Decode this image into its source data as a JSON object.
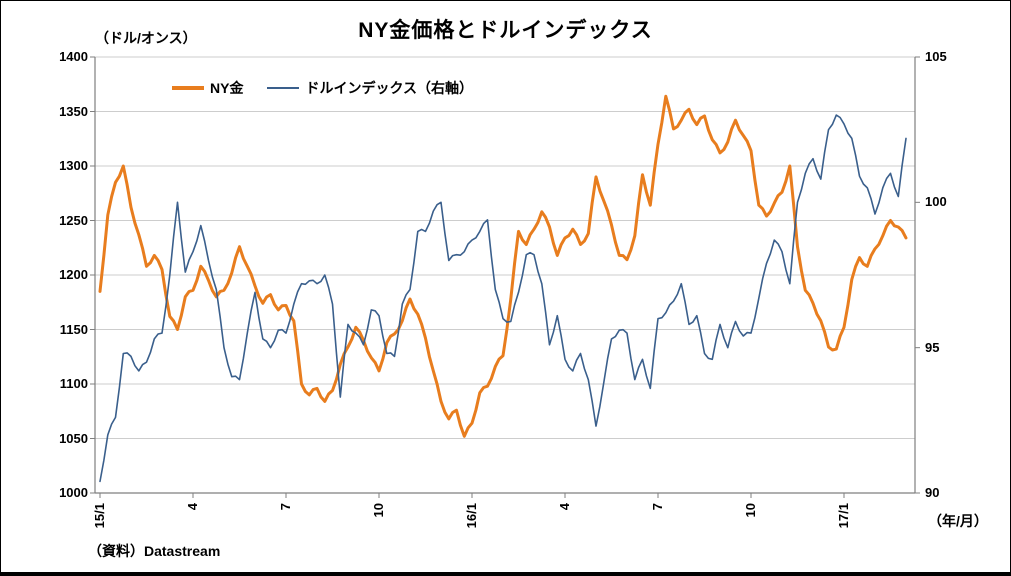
{
  "chart": {
    "title": "NY金価格とドルインデックス",
    "left_axis_unit": "（ドル/オンス）",
    "x_axis_unit": "（年/月）",
    "source": "（資料）Datastream",
    "legend": [
      {
        "label": "NY金",
        "color": "#E87D1E"
      },
      {
        "label": "ドルインデックス（右軸）",
        "color": "#3A5F8C"
      }
    ]
  },
  "chart_data": {
    "type": "line",
    "title": "NY金価格とドルインデックス",
    "grid": true,
    "legend_position": "top-left-inside",
    "x_description": "months since 2015-01, daily-style series sampled at 0.25-month steps",
    "x_start": 0,
    "x_step": 0.25,
    "x_tick_positions": [
      0,
      3,
      6,
      9,
      12,
      15,
      18,
      21,
      24
    ],
    "x_tick_labels": [
      "15/1",
      "4",
      "7",
      "10",
      "16/1",
      "4",
      "7",
      "10",
      "17/1"
    ],
    "left_axis": {
      "label": "（ドル/オンス）",
      "range": [
        1000,
        1400
      ],
      "ticks": [
        1000,
        1050,
        1100,
        1150,
        1200,
        1250,
        1300,
        1350,
        1400
      ]
    },
    "right_axis": {
      "label": "ドルインデックス",
      "range": [
        90,
        105
      ],
      "ticks": [
        90,
        95,
        100,
        105
      ]
    },
    "series": [
      {
        "name": "NY金",
        "axis": "left",
        "color": "#E87D1E",
        "stroke_width": 3,
        "values": [
          1185,
          1255,
          1285,
          1300,
          1262,
          1237,
          1208,
          1218,
          1205,
          1162,
          1150,
          1180,
          1186,
          1208,
          1195,
          1180,
          1186,
          1202,
          1226,
          1208,
          1190,
          1174,
          1182,
          1168,
          1172,
          1158,
          1100,
          1090,
          1096,
          1084,
          1094,
          1118,
          1134,
          1152,
          1140,
          1124,
          1112,
          1138,
          1146,
          1158,
          1178,
          1164,
          1142,
          1112,
          1084,
          1068,
          1076,
          1052,
          1064,
          1092,
          1098,
          1116,
          1126,
          1178,
          1240,
          1228,
          1242,
          1258,
          1244,
          1218,
          1234,
          1242,
          1228,
          1238,
          1290,
          1268,
          1246,
          1218,
          1214,
          1236,
          1292,
          1264,
          1320,
          1364,
          1334,
          1342,
          1352,
          1338,
          1346,
          1324,
          1312,
          1322,
          1342,
          1328,
          1314,
          1264,
          1254,
          1266,
          1276,
          1300,
          1226,
          1186,
          1174,
          1158,
          1134,
          1132,
          1152,
          1196,
          1216,
          1208,
          1224,
          1236,
          1250,
          1244,
          1234
        ]
      },
      {
        "name": "ドルインデックス（右軸）",
        "axis": "right",
        "color": "#3A5F8C",
        "stroke_width": 1.6,
        "values": [
          90.4,
          92.0,
          92.6,
          94.8,
          94.7,
          94.2,
          94.5,
          95.3,
          95.5,
          97.5,
          100.0,
          97.6,
          98.3,
          99.2,
          98.0,
          97.0,
          95.0,
          94.0,
          93.9,
          95.5,
          96.9,
          95.3,
          95.0,
          95.6,
          95.5,
          96.5,
          97.2,
          97.3,
          97.2,
          97.5,
          96.5,
          93.3,
          95.8,
          95.5,
          95.1,
          96.3,
          96.1,
          94.8,
          94.7,
          96.5,
          97.0,
          99.0,
          99.0,
          99.7,
          100.0,
          98.0,
          98.2,
          98.3,
          98.7,
          99.0,
          99.4,
          97.0,
          96.0,
          95.9,
          96.9,
          98.2,
          98.2,
          97.2,
          95.1,
          96.1,
          94.6,
          94.2,
          94.8,
          93.9,
          92.3,
          93.8,
          95.3,
          95.6,
          95.5,
          93.9,
          94.6,
          93.6,
          96.0,
          96.2,
          96.6,
          97.2,
          95.8,
          96.1,
          94.8,
          94.6,
          95.8,
          95.0,
          95.9,
          95.4,
          95.5,
          96.7,
          97.9,
          98.7,
          98.3,
          97.2,
          100.0,
          101.0,
          101.5,
          100.8,
          102.5,
          103.0,
          102.7,
          102.2,
          100.9,
          100.5,
          99.6,
          100.5,
          101.0,
          100.2,
          102.2
        ]
      }
    ]
  }
}
